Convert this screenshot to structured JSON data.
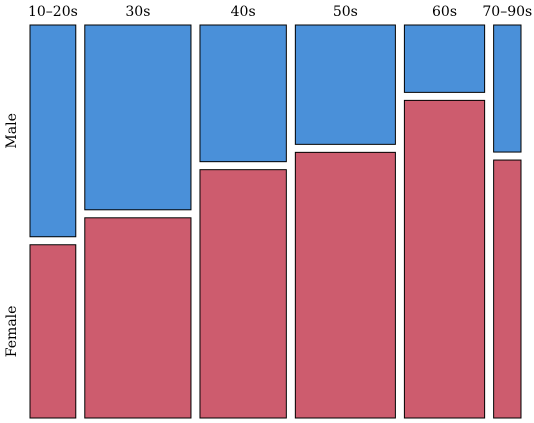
{
  "chart_data": {
    "type": "mosaic",
    "title": "",
    "xlabel": "",
    "ylabel": "",
    "categories": [
      "10–20s",
      "30s",
      "40s",
      "50s",
      "60s",
      "70–90s"
    ],
    "category_widths": [
      0.097,
      0.225,
      0.183,
      0.212,
      0.17,
      0.058
    ],
    "series": [
      {
        "name": "Male",
        "values": [
          0.55,
          0.48,
          0.355,
          0.31,
          0.175,
          0.33
        ],
        "color": "#4a90d9"
      },
      {
        "name": "Female",
        "values": [
          0.45,
          0.52,
          0.645,
          0.69,
          0.825,
          0.67
        ],
        "color": "#cd5c6e"
      }
    ],
    "grid": false,
    "legend": "none"
  }
}
